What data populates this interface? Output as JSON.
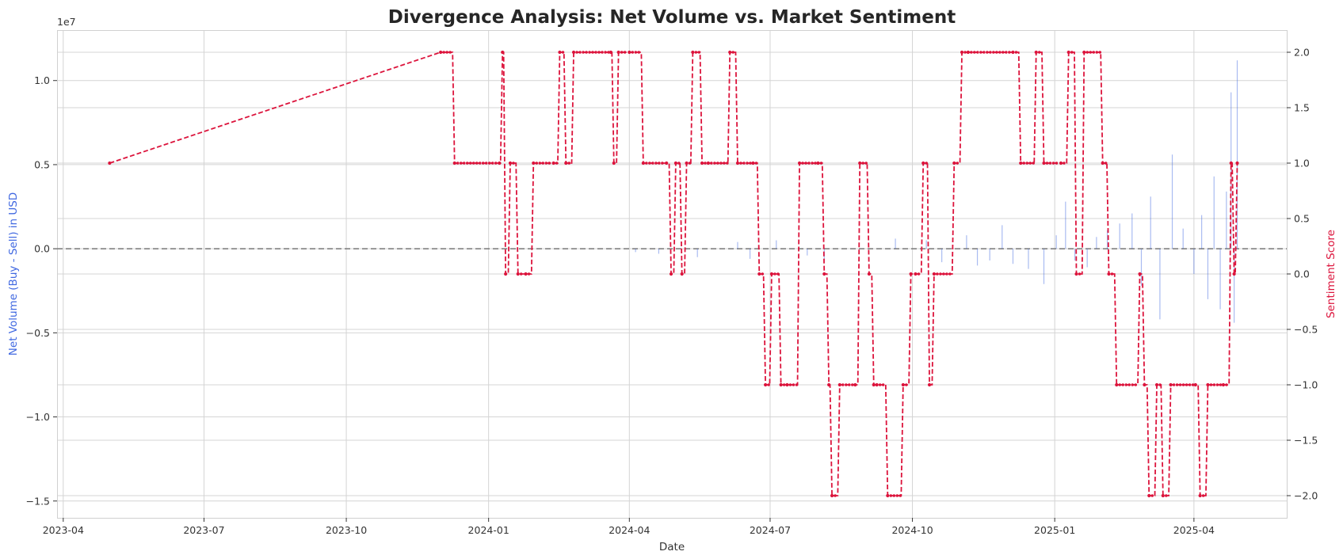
{
  "chart_data": {
    "type": "line",
    "title": "Divergence Analysis: Net Volume vs. Market Sentiment",
    "xlabel": "Date",
    "ylabel_left": "Net Volume (Buy - Sell) in USD",
    "ylabel_right": "Sentiment Score",
    "left_offset_text": "1e7",
    "x_tick_labels": [
      "2023-04",
      "2023-07",
      "2023-10",
      "2024-01",
      "2024-04",
      "2024-07",
      "2024-10",
      "2025-01",
      "2025-04"
    ],
    "left_tick_labels": [
      "1.0",
      "0.5",
      "0.0",
      "−0.5",
      "−1.0",
      "−1.5"
    ],
    "right_tick_labels": [
      "2.0",
      "1.5",
      "1.0",
      "0.5",
      "0.0",
      "−0.5",
      "−1.0",
      "−1.5",
      "−2.0"
    ],
    "left_ylim": [
      -16000000.0,
      13000000.0
    ],
    "right_ylim": [
      -2.2,
      2.2
    ],
    "xlim": [
      "2023-03-28",
      "2025-05-31"
    ],
    "grid": true,
    "colors": {
      "net_volume": "#4169e1",
      "sentiment": "#dc143c",
      "zero_line": "#808080"
    },
    "series": [
      {
        "axis": "right",
        "style": "dashed-line-with-markers",
        "x": [
          "2023-05-01",
          "2023-12-01",
          "2023-12-10",
          "2024-01-08",
          "2024-01-10",
          "2024-01-12",
          "2024-01-15",
          "2024-01-20",
          "2024-01-25",
          "2024-01-30",
          "2024-02-12",
          "2024-02-16",
          "2024-02-20",
          "2024-02-25",
          "2024-03-20",
          "2024-03-22",
          "2024-03-25",
          "2024-04-01",
          "2024-04-10",
          "2024-04-25",
          "2024-04-28",
          "2024-05-01",
          "2024-05-05",
          "2024-05-08",
          "2024-05-12",
          "2024-05-18",
          "2024-05-22",
          "2024-06-05",
          "2024-06-10",
          "2024-06-20",
          "2024-06-24",
          "2024-06-28",
          "2024-07-02",
          "2024-07-08",
          "2024-07-12",
          "2024-07-20",
          "2024-08-01",
          "2024-08-05",
          "2024-08-08",
          "2024-08-10",
          "2024-08-15",
          "2024-08-25",
          "2024-08-28",
          "2024-09-03",
          "2024-09-06",
          "2024-09-08",
          "2024-09-15",
          "2024-09-25",
          "2024-09-30",
          "2024-10-03",
          "2024-10-08",
          "2024-10-12",
          "2024-10-15",
          "2024-10-28",
          "2024-11-02",
          "2024-11-06",
          "2024-12-05",
          "2024-12-10",
          "2024-12-20",
          "2024-12-25",
          "2025-01-05",
          "2025-01-10",
          "2025-01-15",
          "2025-01-20",
          "2025-02-01",
          "2025-02-05",
          "2025-02-10",
          "2025-02-25",
          "2025-02-28",
          "2025-03-03",
          "2025-03-08",
          "2025-03-12",
          "2025-03-17",
          "2025-04-02",
          "2025-04-05",
          "2025-04-10",
          "2025-04-20",
          "2025-04-25",
          "2025-04-27",
          "2025-04-29"
        ],
        "values": [
          1,
          2,
          1,
          1,
          2,
          0,
          1,
          0,
          0,
          1,
          1,
          2,
          1,
          2,
          2,
          1,
          2,
          2,
          1,
          1,
          0,
          1,
          0,
          1,
          2,
          1,
          1,
          2,
          1,
          1,
          0,
          -1,
          0,
          -1,
          -1,
          1,
          1,
          0,
          -1,
          -2,
          -1,
          -1,
          1,
          0,
          -1,
          -1,
          -2,
          -1,
          0,
          0,
          1,
          -1,
          0,
          1,
          2,
          2,
          2,
          1,
          2,
          1,
          1,
          2,
          0,
          2,
          1,
          0,
          -1,
          0,
          -1,
          -2,
          -1,
          -2,
          -1,
          -1,
          -2,
          -1,
          -1,
          1,
          0,
          1
        ]
      },
      {
        "axis": "left",
        "style": "thin-bars",
        "x": [
          "2024-04-05",
          "2024-04-20",
          "2024-05-15",
          "2024-06-10",
          "2024-06-18",
          "2024-07-05",
          "2024-07-25",
          "2024-08-05",
          "2024-09-20",
          "2024-10-10",
          "2024-10-20",
          "2024-11-05",
          "2024-11-12",
          "2024-11-20",
          "2024-11-28",
          "2024-12-05",
          "2024-12-15",
          "2024-12-25",
          "2025-01-02",
          "2025-01-08",
          "2025-01-14",
          "2025-01-22",
          "2025-01-28",
          "2025-02-04",
          "2025-02-12",
          "2025-02-20",
          "2025-02-26",
          "2025-03-04",
          "2025-03-10",
          "2025-03-18",
          "2025-03-25",
          "2025-04-01",
          "2025-04-06",
          "2025-04-10",
          "2025-04-14",
          "2025-04-18",
          "2025-04-22",
          "2025-04-25",
          "2025-04-27",
          "2025-04-29"
        ],
        "values": [
          -200000,
          -300000,
          -500000,
          400000,
          -600000,
          500000,
          -400000,
          -700000,
          600000,
          500000,
          -800000,
          800000,
          -1000000,
          -700000,
          1400000,
          -900000,
          -1200000,
          -2100000,
          800000,
          2800000,
          -700000,
          -1100000,
          700000,
          1100000,
          1500000,
          2100000,
          -2200000,
          3100000,
          -4200000,
          5600000,
          1200000,
          -1500000,
          2000000,
          -3000000,
          4300000,
          -3600000,
          3400000,
          9300000,
          -4400000,
          11200000
        ]
      }
    ]
  }
}
